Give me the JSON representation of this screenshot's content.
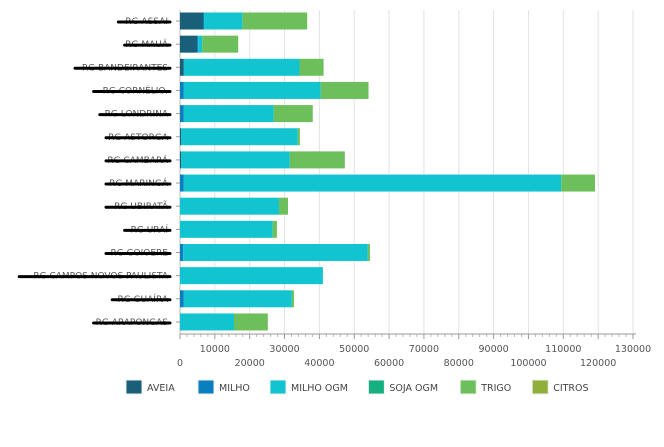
{
  "chart_data": {
    "type": "bar",
    "orientation": "horizontal",
    "stacked": true,
    "title": "",
    "xlabel": "",
    "ylabel": "",
    "xlim": [
      0,
      130000
    ],
    "xticks": [
      0,
      10000,
      20000,
      30000,
      40000,
      50000,
      60000,
      70000,
      80000,
      90000,
      100000,
      110000,
      120000,
      130000
    ],
    "grid": true,
    "legend_position": "bottom",
    "categories": [
      "RG ASSAI",
      "RG MAUÁ",
      "RG BANDEIRANTES",
      "RG CORNÉLIO.",
      "RG LONDRINA",
      "RG ASTORGA",
      "RG CAMBARÁ",
      "RG MARINGÁ",
      "RG UBIRATÃ",
      "RG URAÍ",
      "RG GOIOERE",
      "RG CAMPOS NOVOS PAULISTA",
      "RG GUAÍRA",
      "RG ARAPONGAS"
    ],
    "series": [
      {
        "name": "AVEIA",
        "color": "#1a5f7a",
        "values": [
          6600,
          4900,
          1100,
          0,
          0,
          300,
          300,
          0,
          0,
          0,
          0,
          0,
          0,
          0
        ]
      },
      {
        "name": "MILHO",
        "color": "#0a7fbf",
        "values": [
          300,
          300,
          0,
          1100,
          1100,
          0,
          0,
          1100,
          0,
          0,
          900,
          0,
          1100,
          0
        ]
      },
      {
        "name": "MILHO OGM",
        "color": "#12c3d0",
        "values": [
          11000,
          1200,
          33200,
          39300,
          25800,
          33500,
          31200,
          108300,
          28400,
          26600,
          53000,
          41000,
          31000,
          15500
        ]
      },
      {
        "name": "SOJA OGM",
        "color": "#14b080",
        "values": [
          0,
          0,
          0,
          0,
          0,
          0,
          0,
          0,
          0,
          0,
          0,
          0,
          0,
          0
        ]
      },
      {
        "name": "TRIGO",
        "color": "#6cbf5a",
        "values": [
          18600,
          10300,
          6900,
          13700,
          11200,
          600,
          15800,
          9700,
          2600,
          1200,
          600,
          0,
          600,
          9700
        ]
      },
      {
        "name": "CITROS",
        "color": "#8fae3a",
        "values": [
          0,
          0,
          0,
          0,
          0,
          0,
          0,
          0,
          0,
          0,
          0,
          0,
          0,
          0
        ]
      }
    ]
  }
}
